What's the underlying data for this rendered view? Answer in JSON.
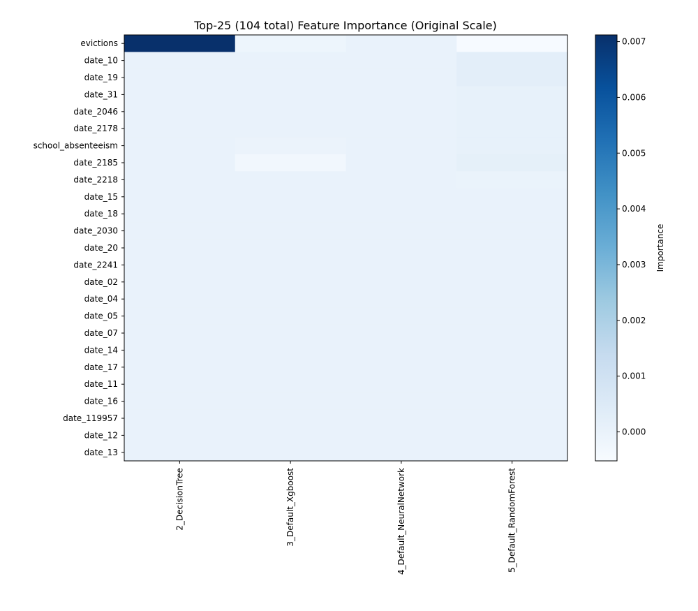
{
  "chart_data": {
    "type": "heatmap",
    "title": "Top-25 (104 total) Feature Importance (Original Scale)",
    "xlabel": "",
    "ylabel": "",
    "columns": [
      "2_DecisionTree",
      "3_Default_Xgboost",
      "4_Default_NeuralNetwork",
      "5_Default_RandomForest"
    ],
    "rows": [
      "evictions",
      "date_10",
      "date_19",
      "date_31",
      "date_2046",
      "date_2178",
      "school_absenteeism",
      "date_2185",
      "date_2218",
      "date_15",
      "date_18",
      "date_2030",
      "date_20",
      "date_2241",
      "date_02",
      "date_04",
      "date_05",
      "date_07",
      "date_14",
      "date_17",
      "date_11",
      "date_16",
      "date_119957",
      "date_12",
      "date_13"
    ],
    "values": [
      [
        0.00712,
        -0.00015,
        0.0,
        -0.00048
      ],
      [
        0.0,
        0.0,
        0.0,
        0.00025
      ],
      [
        0.0,
        0.0,
        0.0,
        0.00025
      ],
      [
        0.0,
        0.0,
        0.0,
        0.0001
      ],
      [
        0.0,
        0.0,
        0.0,
        0.0001
      ],
      [
        0.0,
        0.0,
        0.0,
        0.0001
      ],
      [
        0.0,
        -5e-05,
        0.0,
        0.0001
      ],
      [
        0.0,
        -0.0003,
        0.0,
        0.00015
      ],
      [
        0.0,
        0.0,
        0.0,
        -3e-05
      ],
      [
        0.0,
        0.0,
        0.0,
        0.0
      ],
      [
        0.0,
        0.0,
        0.0,
        0.0
      ],
      [
        0.0,
        0.0,
        0.0,
        0.0
      ],
      [
        0.0,
        0.0,
        0.0,
        0.0
      ],
      [
        0.0,
        0.0,
        0.0,
        0.0
      ],
      [
        0.0,
        0.0,
        0.0,
        0.0
      ],
      [
        0.0,
        0.0,
        0.0,
        0.0
      ],
      [
        0.0,
        0.0,
        0.0,
        0.0
      ],
      [
        0.0,
        0.0,
        0.0,
        0.0
      ],
      [
        0.0,
        0.0,
        0.0,
        0.0
      ],
      [
        0.0,
        0.0,
        0.0,
        0.0
      ],
      [
        0.0,
        0.0,
        0.0,
        0.0
      ],
      [
        0.0,
        0.0,
        0.0,
        0.0
      ],
      [
        0.0,
        0.0,
        0.0,
        0.0
      ],
      [
        0.0,
        0.0,
        0.0,
        0.0
      ],
      [
        0.0,
        0.0,
        0.0,
        0.0
      ]
    ],
    "colormap": "Blues",
    "vmin": -0.00052,
    "vmax": 0.00712,
    "colorbar": {
      "label": "Importance",
      "ticks": [
        0.0,
        0.001,
        0.002,
        0.003,
        0.004,
        0.005,
        0.006,
        0.007
      ],
      "tick_labels": [
        "0.000",
        "0.001",
        "0.002",
        "0.003",
        "0.004",
        "0.005",
        "0.006",
        "0.007"
      ],
      "placement": "right"
    },
    "grid": false,
    "legend": "none"
  }
}
